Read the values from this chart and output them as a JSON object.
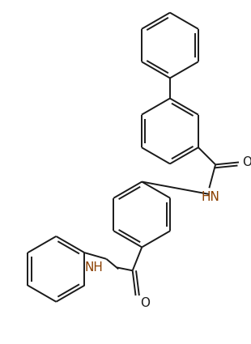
{
  "bg_color": "#ffffff",
  "line_color": "#1a1a1a",
  "nh_color": "#8B4000",
  "line_width": 1.4,
  "figsize": [
    3.1,
    4.25
  ],
  "dpi": 100,
  "xlim": [
    0,
    310
  ],
  "ylim": [
    0,
    425
  ]
}
